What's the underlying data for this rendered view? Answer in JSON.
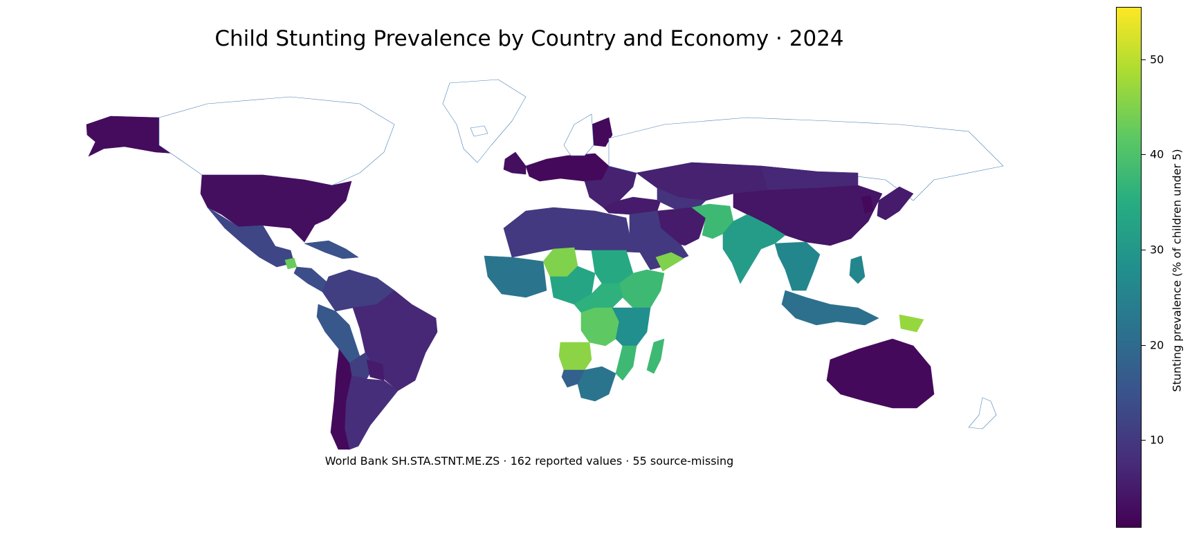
{
  "title": "Child Stunting Prevalence by Country and Economy · 2024",
  "caption": "World Bank SH.STA.STNT.ME.ZS · 162 reported values · 55 source-missing",
  "colorbar": {
    "label": "Stunting prevalence (% of children under 5)",
    "min": 0.8,
    "max": 55.5,
    "colormap": [
      "#440154",
      "#472c7a",
      "#3b518b",
      "#2c718e",
      "#21908d",
      "#27ad81",
      "#5cc863",
      "#aadc32",
      "#fde725"
    ],
    "ticks": [
      {
        "value": 10,
        "label": "10"
      },
      {
        "value": 20,
        "label": "20"
      },
      {
        "value": 30,
        "label": "30"
      },
      {
        "value": 40,
        "label": "40"
      },
      {
        "value": 50,
        "label": "50"
      }
    ]
  },
  "no_data_outline_color": "#4a7fb5",
  "regions": [
    {
      "name": "Alaska",
      "value": 2.5
    },
    {
      "name": "Canada",
      "value": null
    },
    {
      "name": "United States",
      "value": 3.0
    },
    {
      "name": "Mexico",
      "value": 12.5
    },
    {
      "name": "Guatemala",
      "value": 43
    },
    {
      "name": "Central America",
      "value": 14
    },
    {
      "name": "Caribbean",
      "value": 15
    },
    {
      "name": "Colombia / Venezuela",
      "value": 11
    },
    {
      "name": "Ecuador / Peru",
      "value": 16
    },
    {
      "name": "Brazil",
      "value": 7
    },
    {
      "name": "Bolivia",
      "value": 11
    },
    {
      "name": "Paraguay",
      "value": 5
    },
    {
      "name": "Argentina",
      "value": 8
    },
    {
      "name": "Chile",
      "value": 2
    },
    {
      "name": "Greenland",
      "value": null
    },
    {
      "name": "Iceland",
      "value": null
    },
    {
      "name": "United Kingdom / Ireland",
      "value": 3
    },
    {
      "name": "Western Europe",
      "value": 2
    },
    {
      "name": "Finland",
      "value": 2
    },
    {
      "name": "Scandinavia",
      "value": null
    },
    {
      "name": "Eastern Europe / Balkans",
      "value": 6
    },
    {
      "name": "Turkey",
      "value": 5
    },
    {
      "name": "Russia",
      "value": null
    },
    {
      "name": "Kazakhstan",
      "value": 6
    },
    {
      "name": "Central Asia",
      "value": 9
    },
    {
      "name": "Mongolia",
      "value": 7
    },
    {
      "name": "China",
      "value": 4
    },
    {
      "name": "Korea",
      "value": 2
    },
    {
      "name": "Japan",
      "value": 5
    },
    {
      "name": "Iran",
      "value": 5
    },
    {
      "name": "Afghanistan / Pakistan",
      "value": 38
    },
    {
      "name": "India",
      "value": 31
    },
    {
      "name": "Southeast Asia",
      "value": 26
    },
    {
      "name": "Arabian Peninsula",
      "value": 10
    },
    {
      "name": "Yemen",
      "value": 45
    },
    {
      "name": "North Africa",
      "value": 10
    },
    {
      "name": "West Africa coast",
      "value": 22
    },
    {
      "name": "Niger / Mali",
      "value": 45
    },
    {
      "name": "Nigeria / Sahel",
      "value": 33
    },
    {
      "name": "Sudan",
      "value": 34
    },
    {
      "name": "Ethiopia / Horn",
      "value": 38
    },
    {
      "name": "Central Africa",
      "value": 36
    },
    {
      "name": "DR Congo",
      "value": 42
    },
    {
      "name": "East Africa",
      "value": 28
    },
    {
      "name": "Angola",
      "value": 46
    },
    {
      "name": "Mozambique",
      "value": 38
    },
    {
      "name": "Madagascar",
      "value": 38
    },
    {
      "name": "Southern Africa",
      "value": 22
    },
    {
      "name": "Namibia / Botswana",
      "value": 18
    },
    {
      "name": "Indonesia",
      "value": 21
    },
    {
      "name": "Papua New Guinea",
      "value": 47
    },
    {
      "name": "Philippines",
      "value": 26
    },
    {
      "name": "Australia",
      "value": 2
    },
    {
      "name": "New Zealand",
      "value": null
    }
  ]
}
